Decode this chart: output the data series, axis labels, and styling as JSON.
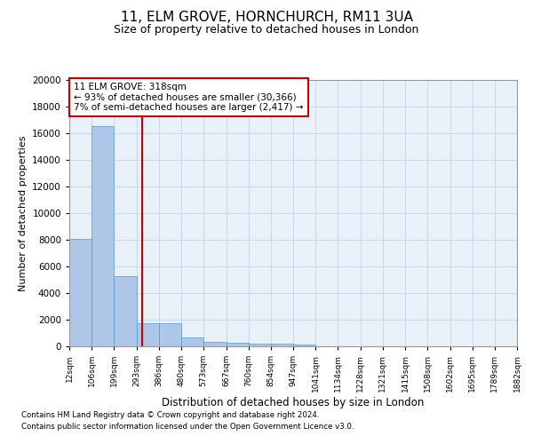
{
  "title": "11, ELM GROVE, HORNCHURCH, RM11 3UA",
  "subtitle": "Size of property relative to detached houses in London",
  "xlabel": "Distribution of detached houses by size in London",
  "ylabel": "Number of detached properties",
  "bar_values": [
    8100,
    16500,
    5300,
    1750,
    1750,
    650,
    350,
    270,
    220,
    190,
    150,
    0,
    0,
    0,
    0,
    0,
    0,
    0,
    0,
    0
  ],
  "bin_edges": [
    12,
    106,
    199,
    293,
    386,
    480,
    573,
    667,
    760,
    854,
    947,
    1041,
    1134,
    1228,
    1321,
    1415,
    1508,
    1602,
    1695,
    1789,
    1882
  ],
  "bar_color": "#aec6e8",
  "bar_edge_color": "#5599cc",
  "property_line_x": 318,
  "property_line_color": "#cc0000",
  "annotation_line1": "11 ELM GROVE: 318sqm",
  "annotation_line2": "← 93% of detached houses are smaller (30,366)",
  "annotation_line3": "7% of semi-detached houses are larger (2,417) →",
  "annotation_box_color": "#cc0000",
  "ylim": [
    0,
    20000
  ],
  "yticks": [
    0,
    2000,
    4000,
    6000,
    8000,
    10000,
    12000,
    14000,
    16000,
    18000,
    20000
  ],
  "grid_color": "#c8d8e8",
  "background_color": "#e8f0f8",
  "footnote1": "Contains HM Land Registry data © Crown copyright and database right 2024.",
  "footnote2": "Contains public sector information licensed under the Open Government Licence v3.0."
}
